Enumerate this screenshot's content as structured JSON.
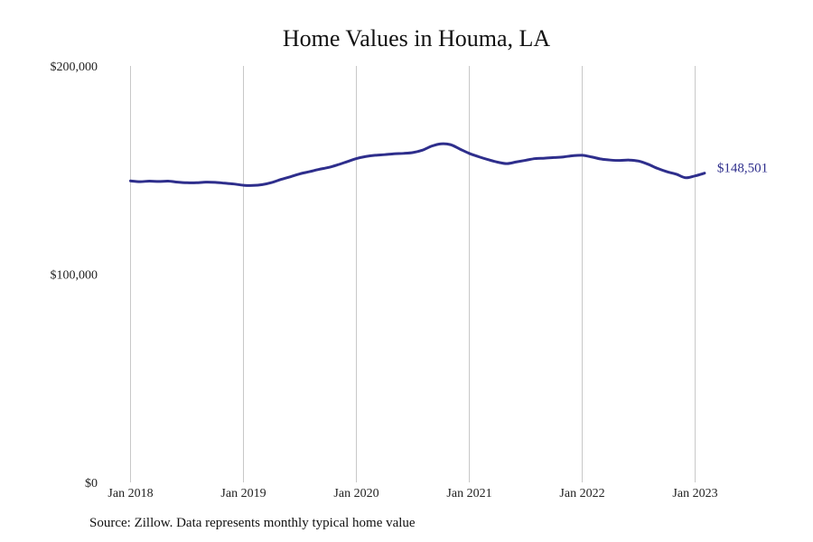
{
  "chart_data": {
    "type": "line",
    "title": "Home Values in Houma, LA",
    "xlabel": "",
    "ylabel": "",
    "y_ticks": [
      "$0",
      "$100,000",
      "$200,000"
    ],
    "y_tick_values": [
      0,
      100000,
      200000
    ],
    "ylim": [
      0,
      200000
    ],
    "x_ticks": [
      "Jan 2018",
      "Jan 2019",
      "Jan 2020",
      "Jan 2021",
      "Jan 2022",
      "Jan 2023"
    ],
    "x_tick_dates": [
      "2018-01",
      "2019-01",
      "2020-01",
      "2021-01",
      "2022-01",
      "2023-01"
    ],
    "grid": "vertical",
    "end_label": "$148,501",
    "color": "#2e2e8c",
    "series": [
      {
        "x": [
          "2018-01",
          "2018-02",
          "2018-03",
          "2018-04",
          "2018-05",
          "2018-06",
          "2018-07",
          "2018-08",
          "2018-09",
          "2018-10",
          "2018-11",
          "2018-12",
          "2019-01",
          "2019-02",
          "2019-03",
          "2019-04",
          "2019-05",
          "2019-06",
          "2019-07",
          "2019-08",
          "2019-09",
          "2019-10",
          "2019-11",
          "2019-12",
          "2020-01",
          "2020-02",
          "2020-03",
          "2020-04",
          "2020-05",
          "2020-06",
          "2020-07",
          "2020-08",
          "2020-09",
          "2020-10",
          "2020-11",
          "2020-12",
          "2021-01",
          "2021-02",
          "2021-03",
          "2021-04",
          "2021-05",
          "2021-06",
          "2021-07",
          "2021-08",
          "2021-09",
          "2021-10",
          "2021-11",
          "2021-12",
          "2022-01",
          "2022-02",
          "2022-03",
          "2022-04",
          "2022-05",
          "2022-06",
          "2022-07",
          "2022-08",
          "2022-09",
          "2022-10",
          "2022-11",
          "2022-12",
          "2023-01",
          "2023-02"
        ],
        "values": [
          144800,
          144400,
          144700,
          144500,
          144700,
          144200,
          143900,
          143900,
          144200,
          144100,
          143700,
          143300,
          142700,
          142600,
          143000,
          144000,
          145500,
          146800,
          148200,
          149200,
          150300,
          151200,
          152500,
          154000,
          155500,
          156500,
          157100,
          157400,
          157800,
          158000,
          158400,
          159500,
          161500,
          162600,
          162200,
          160100,
          158000,
          156400,
          155000,
          153800,
          153100,
          153900,
          154700,
          155500,
          155700,
          156000,
          156300,
          156900,
          157100,
          156300,
          155300,
          154800,
          154600,
          154800,
          154300,
          152800,
          150800,
          149200,
          148000,
          146300,
          147200,
          148501
        ]
      }
    ]
  },
  "footer": {
    "source": "Source: Zillow. Data represents monthly typical home value"
  }
}
